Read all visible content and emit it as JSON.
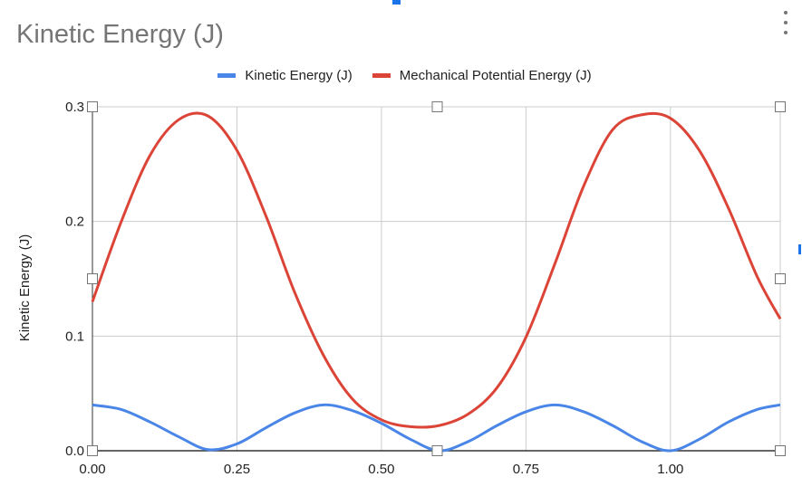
{
  "title": "Kinetic Energy (J)",
  "menu_icon": "more-vert-icon",
  "chart_data": {
    "type": "line",
    "title": "Kinetic Energy (J)",
    "xlabel": "",
    "ylabel": "Kinetic Energy (J)",
    "xlim": [
      0,
      1.19
    ],
    "ylim": [
      0,
      0.3
    ],
    "x_ticks": [
      "0.00",
      "0.25",
      "0.50",
      "0.75",
      "1.00"
    ],
    "y_ticks": [
      "0.0",
      "0.1",
      "0.2",
      "0.3"
    ],
    "grid": true,
    "legend_position": "top",
    "series": [
      {
        "name": "Kinetic Energy (J)",
        "color": "#4a86e8",
        "x": [
          0.0,
          0.05,
          0.1,
          0.15,
          0.2,
          0.25,
          0.3,
          0.35,
          0.4,
          0.45,
          0.5,
          0.55,
          0.6,
          0.65,
          0.7,
          0.75,
          0.8,
          0.85,
          0.9,
          0.95,
          1.0,
          1.05,
          1.1,
          1.15,
          1.19
        ],
        "values": [
          0.04,
          0.036,
          0.025,
          0.012,
          0.001,
          0.006,
          0.02,
          0.033,
          0.04,
          0.035,
          0.024,
          0.01,
          0.0,
          0.008,
          0.022,
          0.034,
          0.04,
          0.034,
          0.022,
          0.008,
          0.0,
          0.01,
          0.025,
          0.036,
          0.04
        ]
      },
      {
        "name": "Mechanical Potential Energy (J)",
        "color": "#db4437",
        "x": [
          0.0,
          0.05,
          0.1,
          0.15,
          0.2,
          0.25,
          0.3,
          0.35,
          0.4,
          0.45,
          0.5,
          0.55,
          0.6,
          0.65,
          0.7,
          0.75,
          0.8,
          0.85,
          0.9,
          0.95,
          1.0,
          1.05,
          1.1,
          1.15,
          1.19
        ],
        "values": [
          0.13,
          0.2,
          0.258,
          0.289,
          0.292,
          0.262,
          0.205,
          0.138,
          0.083,
          0.045,
          0.027,
          0.021,
          0.022,
          0.032,
          0.055,
          0.099,
          0.163,
          0.231,
          0.28,
          0.293,
          0.29,
          0.262,
          0.212,
          0.152,
          0.115
        ]
      }
    ]
  }
}
